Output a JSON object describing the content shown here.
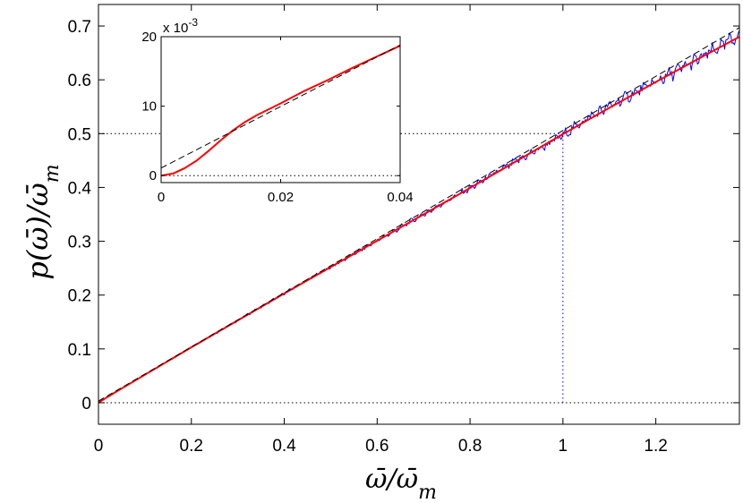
{
  "chart_data": [
    {
      "type": "line",
      "title": "",
      "xlabel": "ω̄/ω̄",
      "xlabel_sub": "m",
      "ylabel": "p(ω̄)/ω̄",
      "ylabel_sub": "m",
      "xlim": [
        0,
        1.38
      ],
      "ylim": [
        -0.04,
        0.74
      ],
      "x_ticks": [
        0,
        0.2,
        0.4,
        0.6,
        0.8,
        1,
        1.2
      ],
      "x_tick_labels": [
        "0",
        "0.2",
        "0.4",
        "0.6",
        "0.8",
        "1",
        "1.2"
      ],
      "y_ticks": [
        0,
        0.1,
        0.2,
        0.3,
        0.4,
        0.5,
        0.6,
        0.7
      ],
      "y_tick_labels": [
        "0",
        "0.1",
        "0.2",
        "0.3",
        "0.4",
        "0.5",
        "0.6",
        "0.7"
      ],
      "grid": false,
      "reference_lines": [
        {
          "kind": "horizontal",
          "y": 0,
          "style": "dotted",
          "color": "#000000"
        },
        {
          "kind": "horizontal",
          "y": 0.5,
          "x_range": [
            0,
            1
          ],
          "style": "dotted",
          "color": "#000000"
        },
        {
          "kind": "vertical",
          "x": 1,
          "y_range": [
            0,
            0.5
          ],
          "style": "dotted",
          "color": "#0000ff"
        }
      ],
      "series": [
        {
          "color": "#0000ff",
          "style": "solid",
          "width": 1,
          "noisy": true,
          "x": [
            0,
            0.02,
            0.1,
            0.2,
            0.3,
            0.4,
            0.5,
            0.6,
            0.7,
            0.8,
            0.9,
            0.95,
            1.0,
            1.05,
            1.1,
            1.2,
            1.3,
            1.38
          ],
          "y": [
            0,
            0.012,
            0.052,
            0.103,
            0.153,
            0.203,
            0.252,
            0.301,
            0.35,
            0.399,
            0.449,
            0.472,
            0.497,
            0.527,
            0.551,
            0.596,
            0.642,
            0.683
          ]
        },
        {
          "color": "#ff0000",
          "style": "solid",
          "width": 2,
          "x": [
            0,
            0.02,
            0.1,
            0.2,
            0.3,
            0.4,
            0.5,
            0.6,
            0.7,
            0.8,
            0.9,
            1.0,
            1.1,
            1.2,
            1.3,
            1.38
          ],
          "y": [
            0,
            0.011,
            0.052,
            0.103,
            0.153,
            0.203,
            0.252,
            0.301,
            0.35,
            0.399,
            0.449,
            0.499,
            0.548,
            0.596,
            0.643,
            0.68
          ]
        },
        {
          "color": "#000000",
          "style": "dashed",
          "width": 1,
          "x": [
            0,
            1.38
          ],
          "y": [
            0.003,
            0.697
          ]
        }
      ]
    },
    {
      "type": "line",
      "role": "inset",
      "title": "",
      "exponent_label": "x 10",
      "exponent": "-3",
      "xlim": [
        0,
        0.04
      ],
      "ylim": [
        -0.001,
        0.02
      ],
      "x_ticks": [
        0,
        0.02,
        0.04
      ],
      "x_tick_labels": [
        "0",
        "0.02",
        "0.04"
      ],
      "y_ticks": [
        0,
        0.01,
        0.02
      ],
      "y_tick_labels": [
        "0",
        "10",
        "20"
      ],
      "reference_lines": [
        {
          "kind": "horizontal",
          "y": 0,
          "style": "dotted",
          "color": "#000000"
        }
      ],
      "series": [
        {
          "color": "#ff0000",
          "style": "solid",
          "width": 2,
          "x": [
            0,
            0.002,
            0.004,
            0.006,
            0.008,
            0.01,
            0.012,
            0.014,
            0.016,
            0.02,
            0.024,
            0.028,
            0.032,
            0.036,
            0.04
          ],
          "y": [
            0,
            0.0003,
            0.0011,
            0.0022,
            0.0036,
            0.0051,
            0.0065,
            0.0077,
            0.0087,
            0.0104,
            0.0122,
            0.0138,
            0.0155,
            0.0171,
            0.0187
          ]
        },
        {
          "color": "#000000",
          "style": "dashed",
          "width": 1,
          "x": [
            0,
            0.04
          ],
          "y": [
            0.0011,
            0.0188
          ]
        }
      ]
    }
  ]
}
